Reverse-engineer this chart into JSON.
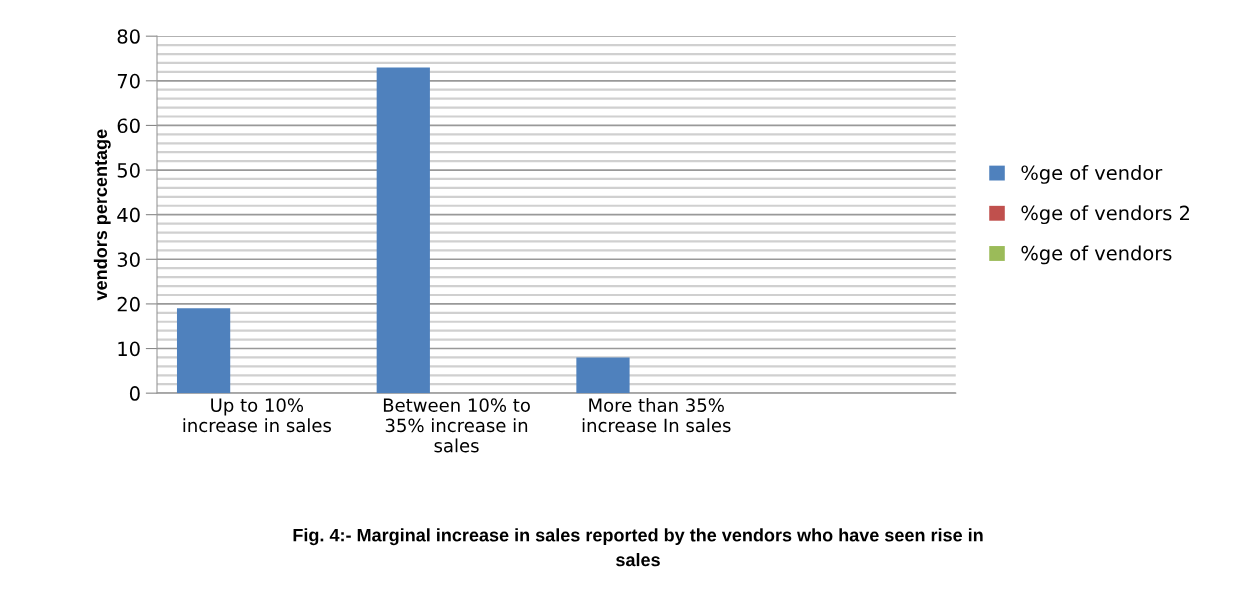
{
  "chart_data": {
    "type": "bar",
    "title": "Fig. 4:- Marginal increase in sales reported by the vendors who have seen rise in\nsales",
    "ylabel": "vendors percentage",
    "categories": [
      "Up to 10%\nincrease in sales",
      "Between 10% to\n35% increase in\nsales",
      "More than 35%\nincrease In sales",
      null
    ],
    "series": [
      {
        "name": "%ge of vendor",
        "color": "#4f81bd",
        "values": [
          19,
          73,
          8,
          null
        ]
      },
      {
        "name": "%ge of vendors 2",
        "color": "#c0504d",
        "values": [
          null,
          null,
          null,
          null
        ]
      },
      {
        "name": "%ge of vendors",
        "color": "#9bbb59",
        "values": [
          null,
          null,
          null,
          null
        ]
      }
    ],
    "ylim": [
      0,
      80
    ],
    "yticks": [
      0,
      {
        "value": 2,
        "label": null
      },
      {
        "value": 4,
        "label": null
      },
      {
        "value": 6,
        "label": null
      },
      {
        "value": 8,
        "label": null
      },
      10,
      {
        "value": 12,
        "label": null
      },
      {
        "value": 14,
        "label": null
      },
      {
        "value": 16,
        "label": null
      },
      {
        "value": 18,
        "label": null
      },
      20,
      {
        "value": 22,
        "label": null
      },
      {
        "value": 24,
        "label": null
      },
      {
        "value": 26,
        "label": null
      },
      {
        "value": 28,
        "label": null
      },
      30,
      {
        "value": 32,
        "label": null
      },
      {
        "value": 34,
        "label": null
      },
      {
        "value": 36,
        "label": null
      },
      {
        "value": 38,
        "label": null
      },
      40,
      {
        "value": 42,
        "label": null
      },
      {
        "value": 44,
        "label": null
      },
      {
        "value": 46,
        "label": null
      },
      {
        "value": 48,
        "label": null
      },
      50,
      {
        "value": 52,
        "label": null
      },
      {
        "value": 54,
        "label": null
      },
      {
        "value": 56,
        "label": null
      },
      {
        "value": 58,
        "label": null
      },
      60,
      {
        "value": 62,
        "label": null
      },
      {
        "value": 64,
        "label": null
      },
      {
        "value": 66,
        "label": null
      },
      {
        "value": 68,
        "label": null
      },
      70,
      {
        "value": 72,
        "label": null
      },
      {
        "value": 74,
        "label": null
      },
      {
        "value": 76,
        "label": null
      },
      {
        "value": 78,
        "label": null
      },
      80
    ],
    "grid": "y",
    "legend": "right"
  }
}
